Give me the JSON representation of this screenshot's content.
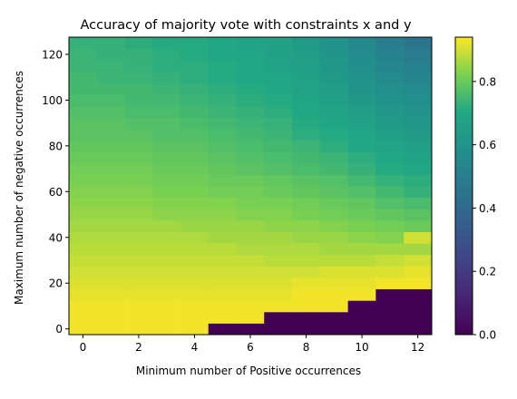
{
  "chart_data": {
    "type": "heatmap",
    "title": "Accuracy of majority vote with constraints x and y",
    "xlabel": "Minimum number of Positive occurrences",
    "ylabel": "Maximum number of negative occurrences",
    "x_ticks": [
      "0",
      "2",
      "4",
      "6",
      "8",
      "10",
      "12"
    ],
    "y_ticks": [
      "0",
      "20",
      "40",
      "60",
      "80",
      "100",
      "120"
    ],
    "colorbar_ticks": [
      "0.0",
      "0.2",
      "0.4",
      "0.6",
      "0.8"
    ],
    "x_range": [
      -0.5,
      12.5
    ],
    "y_range": [
      -2.5,
      127.5
    ],
    "y_step": 5,
    "value_range": [
      0.0,
      0.94
    ],
    "colormap": "viridis",
    "x_values": [
      0,
      1,
      2,
      3,
      4,
      5,
      6,
      7,
      8,
      9,
      10,
      11,
      12
    ],
    "y_values": [
      0,
      5,
      10,
      15,
      20,
      25,
      30,
      35,
      40,
      45,
      50,
      55,
      60,
      65,
      70,
      75,
      80,
      85,
      90,
      95,
      100,
      105,
      110,
      115,
      120,
      125
    ],
    "min_negative_threshold": [
      0,
      0,
      0,
      0,
      0,
      5,
      5,
      10,
      10,
      10,
      15,
      20,
      20
    ],
    "values": [
      [
        0.93,
        0.93,
        0.93,
        0.93,
        0.93,
        0.0,
        0.0,
        0.0,
        0.0,
        0.0,
        0.0,
        0.0,
        0.0
      ],
      [
        0.93,
        0.93,
        0.93,
        0.93,
        0.93,
        0.93,
        0.93,
        0.0,
        0.0,
        0.0,
        0.0,
        0.0,
        0.0
      ],
      [
        0.93,
        0.93,
        0.93,
        0.93,
        0.93,
        0.93,
        0.93,
        0.93,
        0.93,
        0.93,
        0.0,
        0.0,
        0.0
      ],
      [
        0.92,
        0.92,
        0.92,
        0.92,
        0.92,
        0.92,
        0.92,
        0.92,
        0.93,
        0.93,
        0.93,
        0.0,
        0.0
      ],
      [
        0.91,
        0.91,
        0.91,
        0.91,
        0.91,
        0.91,
        0.91,
        0.91,
        0.92,
        0.92,
        0.92,
        0.93,
        0.93
      ],
      [
        0.9,
        0.9,
        0.9,
        0.9,
        0.9,
        0.9,
        0.9,
        0.9,
        0.9,
        0.91,
        0.91,
        0.91,
        0.92
      ],
      [
        0.89,
        0.89,
        0.89,
        0.89,
        0.89,
        0.89,
        0.89,
        0.88,
        0.88,
        0.88,
        0.88,
        0.89,
        0.9
      ],
      [
        0.88,
        0.88,
        0.88,
        0.88,
        0.88,
        0.88,
        0.87,
        0.87,
        0.87,
        0.86,
        0.86,
        0.86,
        0.86
      ],
      [
        0.87,
        0.87,
        0.87,
        0.87,
        0.87,
        0.86,
        0.86,
        0.86,
        0.85,
        0.85,
        0.84,
        0.83,
        0.9
      ],
      [
        0.86,
        0.86,
        0.86,
        0.86,
        0.85,
        0.85,
        0.85,
        0.84,
        0.84,
        0.83,
        0.82,
        0.81,
        0.8
      ],
      [
        0.85,
        0.85,
        0.85,
        0.84,
        0.84,
        0.84,
        0.83,
        0.83,
        0.82,
        0.81,
        0.8,
        0.79,
        0.78
      ],
      [
        0.84,
        0.84,
        0.84,
        0.83,
        0.83,
        0.83,
        0.82,
        0.82,
        0.81,
        0.8,
        0.79,
        0.77,
        0.76
      ],
      [
        0.83,
        0.83,
        0.83,
        0.82,
        0.82,
        0.81,
        0.81,
        0.8,
        0.79,
        0.78,
        0.77,
        0.75,
        0.73
      ],
      [
        0.82,
        0.82,
        0.82,
        0.81,
        0.81,
        0.8,
        0.8,
        0.79,
        0.78,
        0.77,
        0.75,
        0.73,
        0.72
      ],
      [
        0.81,
        0.81,
        0.81,
        0.8,
        0.8,
        0.79,
        0.78,
        0.77,
        0.76,
        0.75,
        0.73,
        0.71,
        0.7
      ],
      [
        0.8,
        0.8,
        0.8,
        0.79,
        0.79,
        0.78,
        0.77,
        0.76,
        0.75,
        0.74,
        0.72,
        0.7,
        0.68
      ],
      [
        0.79,
        0.79,
        0.79,
        0.78,
        0.78,
        0.77,
        0.76,
        0.75,
        0.74,
        0.72,
        0.7,
        0.68,
        0.66
      ],
      [
        0.78,
        0.78,
        0.78,
        0.77,
        0.77,
        0.76,
        0.75,
        0.74,
        0.72,
        0.71,
        0.69,
        0.66,
        0.64
      ],
      [
        0.78,
        0.78,
        0.77,
        0.77,
        0.76,
        0.75,
        0.74,
        0.73,
        0.71,
        0.69,
        0.67,
        0.64,
        0.62
      ],
      [
        0.77,
        0.77,
        0.76,
        0.76,
        0.75,
        0.74,
        0.73,
        0.72,
        0.7,
        0.68,
        0.65,
        0.62,
        0.6
      ],
      [
        0.76,
        0.76,
        0.75,
        0.75,
        0.74,
        0.73,
        0.72,
        0.71,
        0.69,
        0.66,
        0.63,
        0.6,
        0.58
      ],
      [
        0.75,
        0.75,
        0.75,
        0.74,
        0.73,
        0.72,
        0.71,
        0.7,
        0.68,
        0.65,
        0.61,
        0.58,
        0.56
      ],
      [
        0.75,
        0.74,
        0.74,
        0.73,
        0.72,
        0.71,
        0.7,
        0.69,
        0.67,
        0.63,
        0.6,
        0.56,
        0.53
      ],
      [
        0.74,
        0.74,
        0.73,
        0.72,
        0.72,
        0.71,
        0.7,
        0.68,
        0.66,
        0.62,
        0.58,
        0.54,
        0.51
      ],
      [
        0.74,
        0.73,
        0.73,
        0.72,
        0.71,
        0.7,
        0.69,
        0.67,
        0.65,
        0.61,
        0.57,
        0.52,
        0.49
      ],
      [
        0.73,
        0.73,
        0.72,
        0.71,
        0.71,
        0.7,
        0.68,
        0.67,
        0.64,
        0.6,
        0.55,
        0.5,
        0.46
      ]
    ]
  }
}
